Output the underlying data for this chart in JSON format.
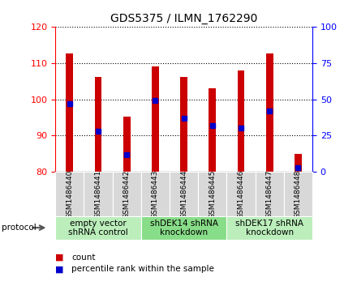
{
  "title": "GDS5375 / ILMN_1762290",
  "samples": [
    "GSM1486440",
    "GSM1486441",
    "GSM1486442",
    "GSM1486443",
    "GSM1486444",
    "GSM1486445",
    "GSM1486446",
    "GSM1486447",
    "GSM1486448"
  ],
  "counts": [
    112.5,
    106.2,
    95.3,
    109.0,
    106.2,
    103.0,
    108.0,
    112.5,
    85.0
  ],
  "percentiles": [
    47,
    28,
    12,
    49,
    37,
    32,
    30,
    42,
    3
  ],
  "ylim_left": [
    80,
    120
  ],
  "ylim_right": [
    0,
    100
  ],
  "yticks_left": [
    80,
    90,
    100,
    110,
    120
  ],
  "yticks_right": [
    0,
    25,
    50,
    75,
    100
  ],
  "bar_color": "#cc0000",
  "marker_color": "#0000cc",
  "bar_bottom": 80,
  "groups": [
    {
      "label": "empty vector\nshRNA control",
      "start": 0,
      "end": 3
    },
    {
      "label": "shDEK14 shRNA\nknockdown",
      "start": 3,
      "end": 6
    },
    {
      "label": "shDEK17 shRNA\nknockdown",
      "start": 6,
      "end": 9
    }
  ],
  "group_colors": [
    "#bbeebb",
    "#88dd88",
    "#bbeebb"
  ],
  "legend_count_label": "count",
  "legend_percentile_label": "percentile rank within the sample",
  "protocol_label": "protocol",
  "bar_width": 0.25,
  "title_fontsize": 10,
  "tick_fontsize": 8,
  "label_fontsize": 8,
  "sample_label_fontsize": 6.5,
  "group_label_fontsize": 7.5
}
